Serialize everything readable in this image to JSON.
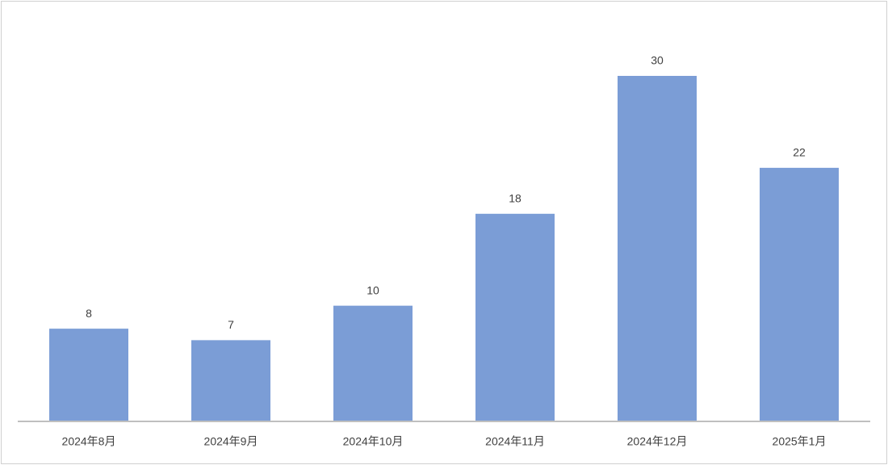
{
  "chart_data": {
    "type": "bar",
    "categories": [
      "2024年8月",
      "2024年9月",
      "2024年10月",
      "2024年11月",
      "2024年12月",
      "2025年1月"
    ],
    "values": [
      8,
      7,
      10,
      18,
      30,
      22
    ],
    "color": "#7b9dd6"
  }
}
